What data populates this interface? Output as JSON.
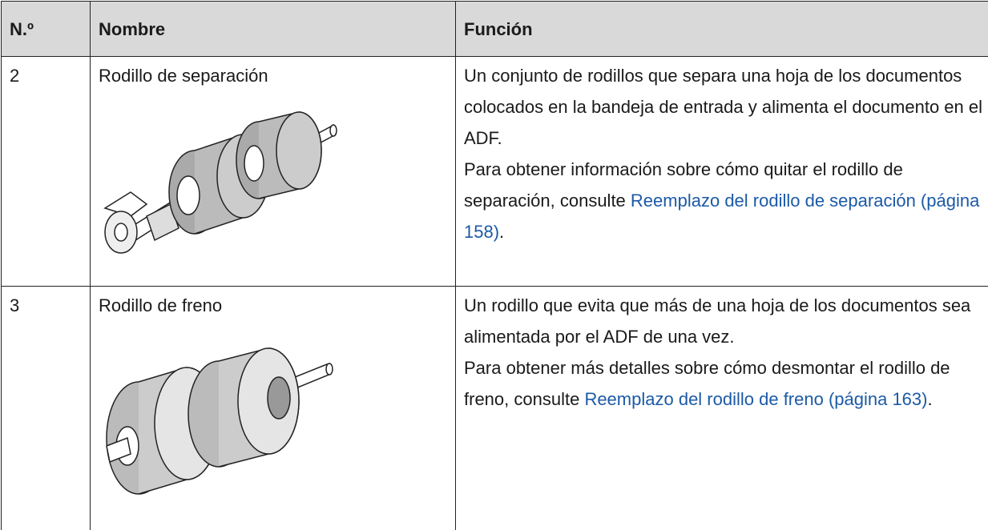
{
  "table": {
    "header": [
      "N.º",
      "Nombre",
      "Función"
    ],
    "rows": [
      {
        "number": "2",
        "name": "Rodillo de separación",
        "description": "Un conjunto de rodillos que separa una hoja de los documentos colocados en la bandeja de entrada y alimenta el documento en el ADF.",
        "reference": "Para obtener información sobre cómo quitar el rodillo de separación, consulte",
        "link": "Reemplazo del rodillo de separación (página 158)",
        "end": "."
      },
      {
        "number": "3",
        "name": "Rodillo de freno",
        "description": "Un rodillo que evita que más de una hoja de los documentos sea alimentada por el ADF de una vez.",
        "reference": "Para obtener más detalles sobre cómo desmontar el rodillo de freno, consulte",
        "link": "Reemplazo del rodillo de freno (página 163)",
        "end": "."
      }
    ]
  }
}
